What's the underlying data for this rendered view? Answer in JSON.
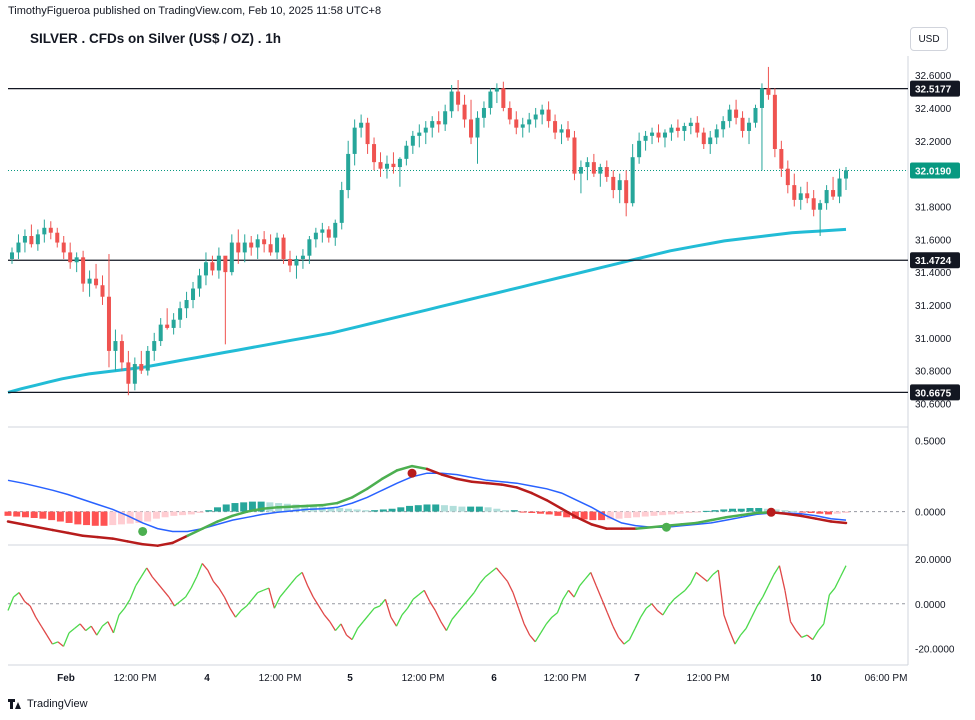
{
  "header": {
    "publish_line": "TimothyFigueroa published on TradingView.com, Feb 10, 2025 11:58 UTC+8",
    "title": "SILVER . CFDs on Silver (US$ / OZ) . 1h",
    "currency_button": "USD"
  },
  "footer": {
    "brand": "TradingView"
  },
  "chart_data": [
    {
      "type": "candlestick",
      "price_axis": {
        "ticks": [
          30.6,
          30.8,
          31.0,
          31.2,
          31.4,
          31.6,
          31.8,
          32.0,
          32.2,
          32.4,
          32.6
        ],
        "range": [
          30.56,
          32.68
        ]
      },
      "horizontal_levels": [
        32.5177,
        31.4724,
        30.6675
      ],
      "last_price": 32.019,
      "level_labels": [
        "32.5177",
        "32.0190",
        "31.4724",
        "30.6675"
      ],
      "candles": [
        [
          31.48,
          31.55,
          31.45,
          31.52
        ],
        [
          31.52,
          31.63,
          31.48,
          31.58
        ],
        [
          31.58,
          31.66,
          31.52,
          31.62
        ],
        [
          31.62,
          31.69,
          31.55,
          31.57
        ],
        [
          31.57,
          31.66,
          31.53,
          31.63
        ],
        [
          31.63,
          31.72,
          31.58,
          31.67
        ],
        [
          31.67,
          31.71,
          31.6,
          31.64
        ],
        [
          31.64,
          31.67,
          31.55,
          31.58
        ],
        [
          31.58,
          31.62,
          31.48,
          31.52
        ],
        [
          31.52,
          31.58,
          31.42,
          31.46
        ],
        [
          31.46,
          31.52,
          31.4,
          31.49
        ],
        [
          31.49,
          31.53,
          31.28,
          31.33
        ],
        [
          31.33,
          31.41,
          31.25,
          31.36
        ],
        [
          31.36,
          31.45,
          31.3,
          31.32
        ],
        [
          31.32,
          31.38,
          31.2,
          31.25
        ],
        [
          31.25,
          31.51,
          30.82,
          30.92
        ],
        [
          30.92,
          31.05,
          30.8,
          30.98
        ],
        [
          30.98,
          31.02,
          30.8,
          30.85
        ],
        [
          30.85,
          30.92,
          30.65,
          30.72
        ],
        [
          30.72,
          30.88,
          30.68,
          30.84
        ],
        [
          30.84,
          30.92,
          30.78,
          30.8
        ],
        [
          30.8,
          30.95,
          30.77,
          30.92
        ],
        [
          30.92,
          31.03,
          30.86,
          30.98
        ],
        [
          30.98,
          31.12,
          30.95,
          31.08
        ],
        [
          31.08,
          31.18,
          31.05,
          31.06
        ],
        [
          31.06,
          31.15,
          31.02,
          31.11
        ],
        [
          31.11,
          31.22,
          31.06,
          31.18
        ],
        [
          31.18,
          31.28,
          31.12,
          31.23
        ],
        [
          31.23,
          31.34,
          31.18,
          31.3
        ],
        [
          31.3,
          31.42,
          31.25,
          31.38
        ],
        [
          31.38,
          31.52,
          31.32,
          31.46
        ],
        [
          31.46,
          31.5,
          31.38,
          31.41
        ],
        [
          31.41,
          31.55,
          31.36,
          31.5
        ],
        [
          31.5,
          31.48,
          30.96,
          31.4
        ],
        [
          31.4,
          31.63,
          31.38,
          31.58
        ],
        [
          31.58,
          31.66,
          31.45,
          31.52
        ],
        [
          31.52,
          31.63,
          31.46,
          31.58
        ],
        [
          31.58,
          31.62,
          31.5,
          31.55
        ],
        [
          31.55,
          31.63,
          31.48,
          31.6
        ],
        [
          31.6,
          31.65,
          31.52,
          31.57
        ],
        [
          31.57,
          31.63,
          31.5,
          31.52
        ],
        [
          31.52,
          31.64,
          31.48,
          31.61
        ],
        [
          31.61,
          31.63,
          31.45,
          31.48
        ],
        [
          31.48,
          31.53,
          31.4,
          31.44
        ],
        [
          31.44,
          31.5,
          31.36,
          31.48
        ],
        [
          31.48,
          31.54,
          31.42,
          31.5
        ],
        [
          31.5,
          31.62,
          31.45,
          31.6
        ],
        [
          31.6,
          31.67,
          31.55,
          31.64
        ],
        [
          31.64,
          31.7,
          31.58,
          31.66
        ],
        [
          31.66,
          31.68,
          31.58,
          31.61
        ],
        [
          31.61,
          31.72,
          31.56,
          31.7
        ],
        [
          31.7,
          31.95,
          31.66,
          31.9
        ],
        [
          31.9,
          32.2,
          31.85,
          32.12
        ],
        [
          32.12,
          32.33,
          32.05,
          32.28
        ],
        [
          32.28,
          32.36,
          32.22,
          32.31
        ],
        [
          32.31,
          32.34,
          32.12,
          32.18
        ],
        [
          32.18,
          32.22,
          32.02,
          32.07
        ],
        [
          32.07,
          32.13,
          31.98,
          32.03
        ],
        [
          32.03,
          32.11,
          31.97,
          32.06
        ],
        [
          32.06,
          32.13,
          32.0,
          32.04
        ],
        [
          32.04,
          32.1,
          31.92,
          32.09
        ],
        [
          32.09,
          32.2,
          32.05,
          32.17
        ],
        [
          32.17,
          32.26,
          32.12,
          32.23
        ],
        [
          32.23,
          32.3,
          32.16,
          32.25
        ],
        [
          32.25,
          32.32,
          32.18,
          32.28
        ],
        [
          32.28,
          32.35,
          32.22,
          32.32
        ],
        [
          32.32,
          32.38,
          32.25,
          32.3
        ],
        [
          32.3,
          32.42,
          32.26,
          32.38
        ],
        [
          32.38,
          32.54,
          32.34,
          32.5
        ],
        [
          32.5,
          32.57,
          32.38,
          32.42
        ],
        [
          32.42,
          32.48,
          32.28,
          32.33
        ],
        [
          32.33,
          32.45,
          32.18,
          32.22
        ],
        [
          32.22,
          32.38,
          32.06,
          32.34
        ],
        [
          32.34,
          32.44,
          32.28,
          32.4
        ],
        [
          32.4,
          32.52,
          32.36,
          32.5
        ],
        [
          32.5,
          32.55,
          32.43,
          32.52
        ],
        [
          32.52,
          32.56,
          32.38,
          32.4
        ],
        [
          32.4,
          32.44,
          32.3,
          32.33
        ],
        [
          32.33,
          32.38,
          32.24,
          32.28
        ],
        [
          32.28,
          32.34,
          32.22,
          32.3
        ],
        [
          32.3,
          32.37,
          32.25,
          32.33
        ],
        [
          32.33,
          32.4,
          32.28,
          32.36
        ],
        [
          32.36,
          32.42,
          32.3,
          32.39
        ],
        [
          32.39,
          32.44,
          32.28,
          32.32
        ],
        [
          32.32,
          32.36,
          32.21,
          32.25
        ],
        [
          32.25,
          32.3,
          32.18,
          32.27
        ],
        [
          32.27,
          32.32,
          32.2,
          32.22
        ],
        [
          32.22,
          32.26,
          31.96,
          32.0
        ],
        [
          32.0,
          32.08,
          31.88,
          32.04
        ],
        [
          32.04,
          32.1,
          31.96,
          32.07
        ],
        [
          32.07,
          32.12,
          31.98,
          32.0
        ],
        [
          32.0,
          32.06,
          31.92,
          32.04
        ],
        [
          32.04,
          32.08,
          31.95,
          31.98
        ],
        [
          31.98,
          32.02,
          31.85,
          31.9
        ],
        [
          31.9,
          32.0,
          31.82,
          31.96
        ],
        [
          31.96,
          32.02,
          31.74,
          31.82
        ],
        [
          31.82,
          32.18,
          31.8,
          32.1
        ],
        [
          32.1,
          32.25,
          32.06,
          32.2
        ],
        [
          32.2,
          32.26,
          32.14,
          32.23
        ],
        [
          32.23,
          32.28,
          32.18,
          32.25
        ],
        [
          32.25,
          32.3,
          32.19,
          32.22
        ],
        [
          32.22,
          32.27,
          32.16,
          32.25
        ],
        [
          32.25,
          32.3,
          32.2,
          32.28
        ],
        [
          32.28,
          32.33,
          32.22,
          32.26
        ],
        [
          32.26,
          32.31,
          32.2,
          32.29
        ],
        [
          32.29,
          32.34,
          32.24,
          32.31
        ],
        [
          32.31,
          32.35,
          32.22,
          32.25
        ],
        [
          32.25,
          32.28,
          32.15,
          32.18
        ],
        [
          32.18,
          32.26,
          32.12,
          32.22
        ],
        [
          32.22,
          32.3,
          32.18,
          32.27
        ],
        [
          32.27,
          32.35,
          32.22,
          32.32
        ],
        [
          32.32,
          32.42,
          32.28,
          32.39
        ],
        [
          32.39,
          32.45,
          32.3,
          32.34
        ],
        [
          32.34,
          32.38,
          32.22,
          32.26
        ],
        [
          32.26,
          32.34,
          32.18,
          32.31
        ],
        [
          32.31,
          32.42,
          32.28,
          32.4
        ],
        [
          32.4,
          32.55,
          32.02,
          32.52
        ],
        [
          32.52,
          32.65,
          32.45,
          32.48
        ],
        [
          32.48,
          32.52,
          32.1,
          32.15
        ],
        [
          32.15,
          32.2,
          31.98,
          32.03
        ],
        [
          32.03,
          32.08,
          31.88,
          31.93
        ],
        [
          31.93,
          32.0,
          31.8,
          31.84
        ],
        [
          31.84,
          31.92,
          31.78,
          31.88
        ],
        [
          31.88,
          31.95,
          31.82,
          31.85
        ],
        [
          31.85,
          31.9,
          31.74,
          31.78
        ],
        [
          31.78,
          31.84,
          31.62,
          31.82
        ],
        [
          31.82,
          31.93,
          31.78,
          31.9
        ],
        [
          31.9,
          31.98,
          31.84,
          31.86
        ],
        [
          31.86,
          32.03,
          31.82,
          31.97
        ],
        [
          31.97,
          32.04,
          31.9,
          32.02
        ]
      ]
    },
    {
      "type": "line",
      "name": "moving average",
      "values": [
        30.667,
        30.69,
        30.71,
        30.73,
        30.75,
        30.765,
        30.78,
        30.79,
        30.8,
        30.81,
        30.82,
        30.835,
        30.85,
        30.865,
        30.88,
        30.895,
        30.91,
        30.925,
        30.94,
        30.955,
        30.97,
        30.985,
        31.0,
        31.015,
        31.03,
        31.05,
        31.07,
        31.09,
        31.11,
        31.13,
        31.15,
        31.17,
        31.19,
        31.21,
        31.23,
        31.25,
        31.27,
        31.29,
        31.31,
        31.33,
        31.35,
        31.37,
        31.39,
        31.41,
        31.43,
        31.45,
        31.47,
        31.49,
        31.51,
        31.53,
        31.545,
        31.56,
        31.575,
        31.59,
        31.6,
        31.61,
        31.62,
        31.63,
        31.64,
        31.645,
        31.65,
        31.655,
        31.66
      ]
    },
    {
      "type": "line",
      "name": "oscillator",
      "y_ticks": [
        0.5,
        0.0
      ],
      "y_range": [
        -0.2,
        0.56
      ],
      "macd": [
        -0.07,
        -0.09,
        -0.11,
        -0.13,
        -0.15,
        -0.17,
        -0.18,
        -0.19,
        -0.21,
        -0.23,
        -0.24,
        -0.22,
        -0.17,
        -0.12,
        -0.07,
        -0.03,
        0.0,
        0.02,
        0.03,
        0.035,
        0.04,
        0.045,
        0.06,
        0.1,
        0.16,
        0.23,
        0.29,
        0.32,
        0.3,
        0.26,
        0.23,
        0.21,
        0.2,
        0.19,
        0.17,
        0.13,
        0.08,
        0.02,
        -0.04,
        -0.09,
        -0.12,
        -0.12,
        -0.12,
        -0.11,
        -0.1,
        -0.09,
        -0.08,
        -0.06,
        -0.04,
        -0.025,
        -0.01,
        -0.005,
        -0.015,
        -0.03,
        -0.05,
        -0.07,
        -0.08
      ],
      "signal": [
        0.22,
        0.2,
        0.175,
        0.15,
        0.12,
        0.085,
        0.05,
        0.015,
        -0.03,
        -0.08,
        -0.12,
        -0.14,
        -0.14,
        -0.12,
        -0.09,
        -0.06,
        -0.04,
        -0.02,
        -0.005,
        0.005,
        0.015,
        0.02,
        0.03,
        0.06,
        0.1,
        0.15,
        0.2,
        0.245,
        0.27,
        0.27,
        0.26,
        0.24,
        0.22,
        0.21,
        0.2,
        0.18,
        0.16,
        0.13,
        0.08,
        0.03,
        -0.03,
        -0.08,
        -0.1,
        -0.11,
        -0.11,
        -0.1,
        -0.09,
        -0.08,
        -0.06,
        -0.04,
        -0.02,
        -0.01,
        -0.01,
        -0.015,
        -0.03,
        -0.05,
        -0.06
      ],
      "histogram": [
        -0.03,
        -0.035,
        -0.04,
        -0.045,
        -0.05,
        -0.06,
        -0.07,
        -0.08,
        -0.09,
        -0.095,
        -0.1,
        -0.1,
        -0.095,
        -0.09,
        -0.085,
        -0.08,
        -0.07,
        -0.05,
        -0.04,
        -0.03,
        -0.025,
        -0.02,
        -0.01,
        0.01,
        0.03,
        0.05,
        0.06,
        0.065,
        0.07,
        0.07,
        0.065,
        0.06,
        0.055,
        0.05,
        0.045,
        0.04,
        0.035,
        0.03,
        0.025,
        0.02,
        0.015,
        0.01,
        0.01,
        0.015,
        0.02,
        0.03,
        0.04,
        0.045,
        0.05,
        0.05,
        0.045,
        0.04,
        0.035,
        0.035,
        0.035,
        0.03,
        0.02,
        0.01,
        0.01,
        -0.005,
        -0.01,
        -0.015,
        -0.02,
        -0.03,
        -0.04,
        -0.05,
        -0.055,
        -0.06,
        -0.06,
        -0.055,
        -0.05,
        -0.045,
        -0.04,
        -0.035,
        -0.03,
        -0.025,
        -0.02,
        -0.015,
        -0.01,
        -0.005,
        0.005,
        0.01,
        0.015,
        0.02,
        0.02,
        0.025,
        0.025,
        0.02,
        0.015,
        0.01,
        0.005,
        -0.005,
        -0.01,
        -0.015,
        -0.02,
        -0.015,
        -0.01
      ],
      "cross_markers": [
        [
          9,
          -0.14,
          "green"
        ],
        [
          27,
          0.27,
          "red"
        ],
        [
          44,
          -0.11,
          "green"
        ],
        [
          51,
          -0.005,
          "red"
        ]
      ]
    },
    {
      "type": "line",
      "name": "momentum oscillator",
      "y_ticks": [
        20.0,
        0.0,
        -20.0
      ],
      "y_range": [
        -26,
        24
      ],
      "values": [
        -3,
        3,
        5,
        1,
        -1,
        -6,
        -10,
        -14,
        -18,
        -17,
        -19,
        -13,
        -11,
        -9,
        -12,
        -10,
        -14,
        -10,
        -8,
        -13,
        -5,
        -2,
        2,
        8,
        12,
        16,
        12,
        9,
        6,
        3,
        -1,
        1,
        3,
        7,
        12,
        18,
        15,
        10,
        7,
        3,
        -2,
        -6,
        -3,
        -1,
        2,
        5,
        6,
        7,
        -2,
        3,
        6,
        9,
        12,
        14,
        8,
        3,
        -1,
        -5,
        -8,
        -12,
        -9,
        -14,
        -16,
        -11,
        -8,
        -5,
        -2,
        -1,
        2,
        -6,
        -10,
        -5,
        -2,
        2,
        4,
        6,
        1,
        -3,
        -8,
        -12,
        -7,
        -4,
        -1,
        2,
        5,
        9,
        12,
        14,
        16,
        13,
        10,
        5,
        -2,
        -9,
        -14,
        -17,
        -13,
        -9,
        -6,
        -4,
        2,
        6,
        3,
        8,
        11,
        14,
        8,
        2,
        -4,
        -10,
        -15,
        -18,
        -16,
        -11,
        -6,
        -2,
        0,
        -3,
        -5,
        -1,
        2,
        4,
        6,
        9,
        14,
        12,
        10,
        13,
        15,
        -5,
        -12,
        -18,
        -14,
        -11,
        -6,
        -1,
        3,
        8,
        13,
        17,
        6,
        -8,
        -12,
        -15,
        -14,
        -16,
        -12,
        -9,
        4,
        7,
        12,
        17
      ]
    }
  ],
  "x_axis": {
    "labels": [
      "Feb",
      "12:00 PM",
      "4",
      "12:00 PM",
      "5",
      "12:00 PM",
      "6",
      "12:00 PM",
      "7",
      "12:00 PM",
      "10",
      "06:00 PM"
    ],
    "bold": [
      true,
      false,
      true,
      false,
      true,
      false,
      true,
      false,
      true,
      false,
      true,
      false
    ]
  },
  "colors": {
    "up": "#26a69a",
    "down": "#ef5350",
    "ma": "#22bcd6",
    "macd_up": "#4caf50",
    "macd_down": "#b71c1c",
    "signal": "#2962ff",
    "hist_pos_strong": "#26a69a",
    "hist_pos_weak": "#b2dfdb",
    "hist_neg_strong": "#ff5252",
    "hist_neg_weak": "#ffcdd2",
    "osc_up": "#4cd94c",
    "osc_down": "#e04848",
    "last_price": "#089981"
  }
}
